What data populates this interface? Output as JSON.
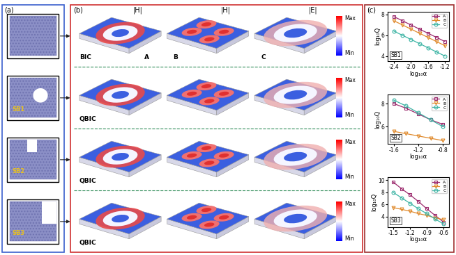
{
  "panel_a": {
    "label": "(a)",
    "structure_labels": [
      "SB1",
      "SB2",
      "SB3"
    ]
  },
  "panel_b": {
    "label": "(b)",
    "field_labels": [
      "|H|",
      "|H|",
      "|E|"
    ],
    "mode_labels": [
      "A",
      "B",
      "C"
    ],
    "row_labels": [
      "BIC",
      "QBIC",
      "QBIC",
      "QBIC"
    ],
    "colorbar_labels": [
      "Max",
      "Min"
    ]
  },
  "panel_c": {
    "label": "(c)"
  },
  "chart_data": [
    {
      "type": "line",
      "annotation": "SB1",
      "xlabel": "log₁₀α",
      "ylabel": "log₁₀Q",
      "xlim": [
        -2.55,
        -1.1
      ],
      "ylim": [
        3.5,
        8.3
      ],
      "xticks": [
        -2.4,
        -2.0,
        -1.6,
        -1.2
      ],
      "yticks": [
        4,
        6,
        8
      ],
      "legend": "upper right",
      "series": [
        {
          "name": "A",
          "color": "#9c2b6e",
          "marker": "square",
          "line_style": "solid",
          "x": [
            -2.4,
            -2.2,
            -2.0,
            -1.8,
            -1.6,
            -1.4,
            -1.2
          ],
          "values": [
            7.8,
            7.4,
            7.0,
            6.6,
            6.2,
            5.8,
            5.4
          ]
        },
        {
          "name": "B",
          "color": "#e08a2c",
          "marker": "triangle_down",
          "line_style": "solid",
          "x": [
            -2.4,
            -2.2,
            -2.0,
            -1.8,
            -1.6,
            -1.4,
            -1.2
          ],
          "values": [
            7.4,
            7.0,
            6.6,
            6.2,
            5.8,
            5.4,
            5.0
          ]
        },
        {
          "name": "C",
          "color": "#3cb4a4",
          "marker": "circle",
          "line_style": "solid",
          "x": [
            -2.4,
            -2.2,
            -2.0,
            -1.8,
            -1.6,
            -1.4,
            -1.2
          ],
          "values": [
            6.4,
            6.0,
            5.6,
            5.2,
            4.8,
            4.4,
            4.0
          ]
        }
      ]
    },
    {
      "type": "line",
      "annotation": "SB2",
      "xlabel": "log₁₀α",
      "ylabel": "log₁₀Q",
      "xlim": [
        -1.7,
        -0.7
      ],
      "ylim": [
        4.5,
        8.8
      ],
      "xticks": [
        -1.6,
        -1.2,
        -0.8
      ],
      "yticks": [
        6,
        8
      ],
      "legend": "upper right",
      "series": [
        {
          "name": "A",
          "color": "#9c2b6e",
          "marker": "square",
          "line_style": "solid",
          "x": [
            -1.6,
            -1.4,
            -1.2,
            -1.0,
            -0.8
          ],
          "values": [
            8.0,
            7.6,
            7.1,
            6.6,
            6.2
          ]
        },
        {
          "name": "B",
          "color": "#e08a2c",
          "marker": "triangle_down",
          "line_style": "solid",
          "x": [
            -1.6,
            -1.4,
            -1.2,
            -1.0,
            -0.8
          ],
          "values": [
            5.6,
            5.4,
            5.2,
            5.0,
            4.8
          ]
        },
        {
          "name": "C",
          "color": "#3cb4a4",
          "marker": "circle",
          "line_style": "solid",
          "x": [
            -1.6,
            -1.4,
            -1.2,
            -1.0,
            -0.8
          ],
          "values": [
            8.3,
            7.8,
            7.2,
            6.6,
            6.0
          ]
        }
      ]
    },
    {
      "type": "line",
      "annotation": "SB3",
      "xlabel": "log₁₀α",
      "ylabel": "log₁₀Q",
      "xlim": [
        -1.6,
        -0.5
      ],
      "ylim": [
        2.3,
        10.5
      ],
      "xticks": [
        -1.5,
        -1.2,
        -0.9,
        -0.6
      ],
      "yticks": [
        4,
        6,
        8,
        10
      ],
      "legend": "upper right",
      "series": [
        {
          "name": "A",
          "color": "#9c2b6e",
          "marker": "square",
          "line_style": "solid",
          "x": [
            -1.5,
            -1.35,
            -1.2,
            -1.05,
            -0.9,
            -0.75,
            -0.6
          ],
          "values": [
            9.7,
            8.6,
            7.6,
            6.5,
            5.3,
            4.2,
            3.1
          ]
        },
        {
          "name": "B",
          "color": "#e08a2c",
          "marker": "triangle_down",
          "line_style": "solid",
          "x": [
            -1.5,
            -1.35,
            -1.2,
            -1.05,
            -0.9,
            -0.75,
            -0.6
          ],
          "values": [
            5.5,
            5.2,
            4.9,
            4.5,
            4.2,
            3.8,
            3.5
          ]
        },
        {
          "name": "C",
          "color": "#3cb4a4",
          "marker": "circle",
          "line_style": "solid",
          "x": [
            -1.5,
            -1.35,
            -1.2,
            -1.05,
            -0.9,
            -0.75,
            -0.6
          ],
          "values": [
            8.0,
            7.1,
            6.2,
            5.3,
            4.5,
            3.6,
            2.8
          ]
        }
      ]
    }
  ]
}
